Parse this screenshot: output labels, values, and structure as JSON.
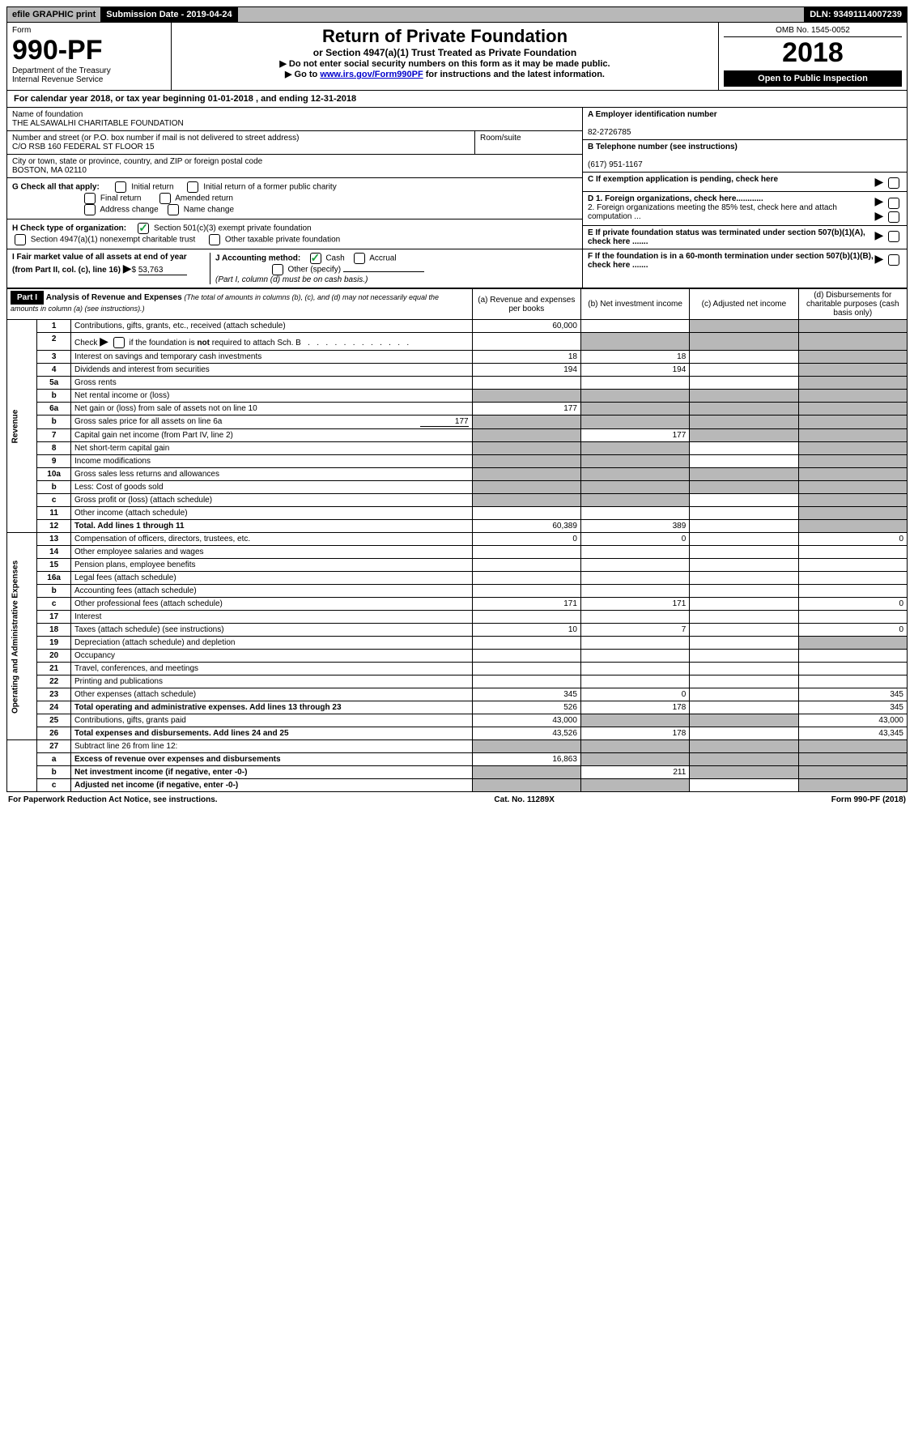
{
  "top": {
    "efile": "efile GRAPHIC print",
    "subdate": "Submission Date - 2019-04-24",
    "dln": "DLN: 93491114007239"
  },
  "header": {
    "form_label": "Form",
    "form_no": "990-PF",
    "dept": "Department of the Treasury",
    "irs": "Internal Revenue Service",
    "title": "Return of Private Foundation",
    "subtitle": "or Section 4947(a)(1) Trust Treated as Private Foundation",
    "instr1": "▶ Do not enter social security numbers on this form as it may be made public.",
    "instr2_pre": "▶ Go to ",
    "instr2_link": "www.irs.gov/Form990PF",
    "instr2_post": " for instructions and the latest information.",
    "omb": "OMB No. 1545-0052",
    "year": "2018",
    "open": "Open to Public Inspection"
  },
  "calyear": "For calendar year 2018, or tax year beginning 01-01-2018                                    , and ending 12-31-2018",
  "info": {
    "name_label": "Name of foundation",
    "name": "THE ALSAWALHI CHARITABLE FOUNDATION",
    "addr_label": "Number and street (or P.O. box number if mail is not delivered to street address)",
    "room_label": "Room/suite",
    "addr": "C/O RSB 160 FEDERAL ST FLOOR 15",
    "city_label": "City or town, state or province, country, and ZIP or foreign postal code",
    "city": "BOSTON, MA  02110",
    "a_label": "A Employer identification number",
    "ein": "82-2726785",
    "b_label": "B Telephone number (see instructions)",
    "phone": "(617) 951-1167",
    "c_label": "C If exemption application is pending, check here",
    "d1": "D 1. Foreign organizations, check here............",
    "d2": "2. Foreign organizations meeting the 85% test, check here and attach computation ...",
    "e_label": "E  If private foundation status was terminated under section 507(b)(1)(A), check here .......",
    "f_label": "F  If the foundation is in a 60-month termination under section 507(b)(1)(B), check here .......",
    "g_label": "G Check all that apply:",
    "g_initial": "Initial return",
    "g_initial_former": "Initial return of a former public charity",
    "g_final": "Final return",
    "g_amended": "Amended return",
    "g_address": "Address change",
    "g_name": "Name change",
    "h_label": "H Check type of organization:",
    "h_501c3": "Section 501(c)(3) exempt private foundation",
    "h_4947": "Section 4947(a)(1) nonexempt charitable trust",
    "h_other": "Other taxable private foundation",
    "i_label": "I Fair market value of all assets at end of year (from Part II, col. (c), line 16)",
    "i_value": "53,763",
    "j_label": "J Accounting method:",
    "j_cash": "Cash",
    "j_accrual": "Accrual",
    "j_other": "Other (specify)",
    "j_note": "(Part I, column (d) must be on cash basis.)"
  },
  "part1": {
    "label": "Part I",
    "title": "Analysis of Revenue and Expenses",
    "title_note": "(The total of amounts in columns (b), (c), and (d) may not necessarily equal the amounts in column (a) (see instructions).)",
    "col_a": "(a)   Revenue and expenses per books",
    "col_b": "(b)  Net investment income",
    "col_c": "(c)  Adjusted net income",
    "col_d": "(d)  Disbursements for charitable purposes (cash basis only)",
    "revenue_label": "Revenue",
    "expenses_label": "Operating and Administrative Expenses"
  },
  "rows": [
    {
      "n": "1",
      "d": "shaded",
      "a": "60,000",
      "b": "",
      "c": "shaded"
    },
    {
      "n": "2",
      "d": "shaded",
      "a": "",
      "b": "shaded",
      "c": "shaded",
      "special": "check"
    },
    {
      "n": "3",
      "d": "shaded",
      "a": "18",
      "b": "18",
      "c": ""
    },
    {
      "n": "4",
      "d": "shaded",
      "a": "194",
      "b": "194",
      "c": ""
    },
    {
      "n": "5a",
      "d": "shaded",
      "a": "",
      "b": "",
      "c": ""
    },
    {
      "n": "b",
      "d": "shaded",
      "a": "shaded",
      "b": "shaded",
      "c": "shaded"
    },
    {
      "n": "6a",
      "d": "shaded",
      "a": "177",
      "b": "shaded",
      "c": "shaded"
    },
    {
      "n": "b",
      "d": "shaded",
      "v": "177",
      "a": "shaded",
      "b": "shaded",
      "c": "shaded"
    },
    {
      "n": "7",
      "d": "shaded",
      "a": "shaded",
      "b": "177",
      "c": "shaded"
    },
    {
      "n": "8",
      "d": "shaded",
      "a": "shaded",
      "b": "shaded",
      "c": ""
    },
    {
      "n": "9",
      "d": "shaded",
      "a": "shaded",
      "b": "shaded",
      "c": ""
    },
    {
      "n": "10a",
      "d": "shaded",
      "a": "shaded",
      "b": "shaded",
      "c": "shaded"
    },
    {
      "n": "b",
      "d": "shaded",
      "a": "shaded",
      "b": "shaded",
      "c": "shaded"
    },
    {
      "n": "c",
      "d": "shaded",
      "a": "shaded",
      "b": "shaded",
      "c": ""
    },
    {
      "n": "11",
      "d": "shaded",
      "a": "",
      "b": "",
      "c": ""
    },
    {
      "n": "12",
      "d": "shaded",
      "a": "60,389",
      "b": "389",
      "c": "",
      "bold": true
    }
  ],
  "exp_rows": [
    {
      "n": "13",
      "d": "0",
      "a": "0",
      "b": "0",
      "c": ""
    },
    {
      "n": "14",
      "d": "",
      "a": "",
      "b": "",
      "c": ""
    },
    {
      "n": "15",
      "d": "",
      "a": "",
      "b": "",
      "c": ""
    },
    {
      "n": "16a",
      "d": "",
      "a": "",
      "b": "",
      "c": ""
    },
    {
      "n": "b",
      "d": "",
      "a": "",
      "b": "",
      "c": ""
    },
    {
      "n": "c",
      "d": "0",
      "a": "171",
      "b": "171",
      "c": ""
    },
    {
      "n": "17",
      "d": "",
      "a": "",
      "b": "",
      "c": ""
    },
    {
      "n": "18",
      "d": "0",
      "a": "10",
      "b": "7",
      "c": ""
    },
    {
      "n": "19",
      "d": "shaded",
      "a": "",
      "b": "",
      "c": ""
    },
    {
      "n": "20",
      "d": "",
      "a": "",
      "b": "",
      "c": ""
    },
    {
      "n": "21",
      "d": "",
      "a": "",
      "b": "",
      "c": ""
    },
    {
      "n": "22",
      "d": "",
      "a": "",
      "b": "",
      "c": ""
    },
    {
      "n": "23",
      "d": "345",
      "a": "345",
      "b": "0",
      "c": ""
    },
    {
      "n": "24",
      "d": "345",
      "a": "526",
      "b": "178",
      "c": "",
      "bold": true
    },
    {
      "n": "25",
      "d": "43,000",
      "a": "43,000",
      "b": "shaded",
      "c": "shaded"
    },
    {
      "n": "26",
      "d": "43,345",
      "a": "43,526",
      "b": "178",
      "c": "",
      "bold": true
    }
  ],
  "bottom_rows": [
    {
      "n": "27",
      "d": "shaded",
      "a": "shaded",
      "b": "shaded",
      "c": "shaded"
    },
    {
      "n": "a",
      "d": "shaded",
      "a": "16,863",
      "b": "shaded",
      "c": "shaded",
      "bold": true
    },
    {
      "n": "b",
      "d": "shaded",
      "a": "shaded",
      "b": "211",
      "c": "shaded",
      "bold": true
    },
    {
      "n": "c",
      "d": "shaded",
      "a": "shaded",
      "b": "shaded",
      "c": "",
      "bold": true
    }
  ],
  "footer": {
    "left": "For Paperwork Reduction Act Notice, see instructions.",
    "center": "Cat. No. 11289X",
    "right": "Form 990-PF (2018)"
  }
}
